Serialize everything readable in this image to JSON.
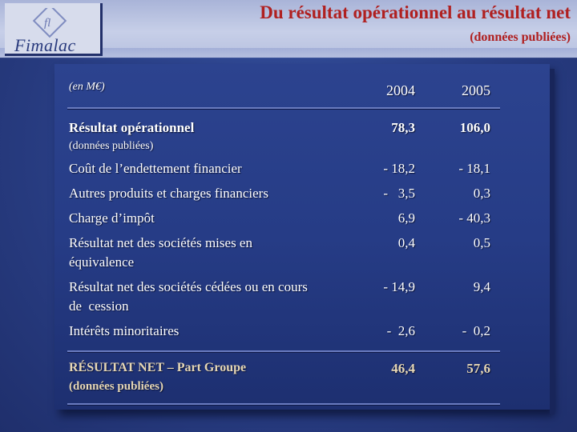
{
  "header": {
    "logo_text": "Fimalac",
    "title": "Du résultat opérationnel au résultat net",
    "subtitle": "(données publiées)"
  },
  "table": {
    "unit_label": "(en M€)",
    "col_2004": "2004",
    "col_2005": "2005",
    "rows": [
      {
        "label": "Résultat opérationnel",
        "sublabel": "(données publiées)",
        "v2004": "78,3",
        "v2005": "106,0"
      },
      {
        "label": "Coût de l’endettement financier",
        "v2004": "- 18,2",
        "v2005": "- 18,1"
      },
      {
        "label": "Autres produits et charges financiers",
        "v2004": "-   3,5",
        "v2005": "0,3"
      },
      {
        "label": "Charge d’impôt",
        "v2004": "6,9",
        "v2005": "- 40,3"
      },
      {
        "label": "Résultat net des sociétés mises en",
        "label2": "équivalence",
        "v2004": "0,4",
        "v2005": "0,5"
      },
      {
        "label": "Résultat net des sociétés cédées ou en cours",
        "label2": "de  cession",
        "v2004": "- 14,9",
        "v2005": "9,4"
      },
      {
        "label": "Intérêts minoritaires",
        "v2004": "-  2,6",
        "v2005": "-  0,2"
      }
    ],
    "total": {
      "label": "RÉSULTAT NET – Part Groupe",
      "sublabel": "(données publiées)",
      "v2004": "46,4",
      "v2005": "57,6"
    }
  },
  "colors": {
    "title_red": "#b02020",
    "background_blue": "#2a3f86",
    "text_white": "#ffffff"
  }
}
